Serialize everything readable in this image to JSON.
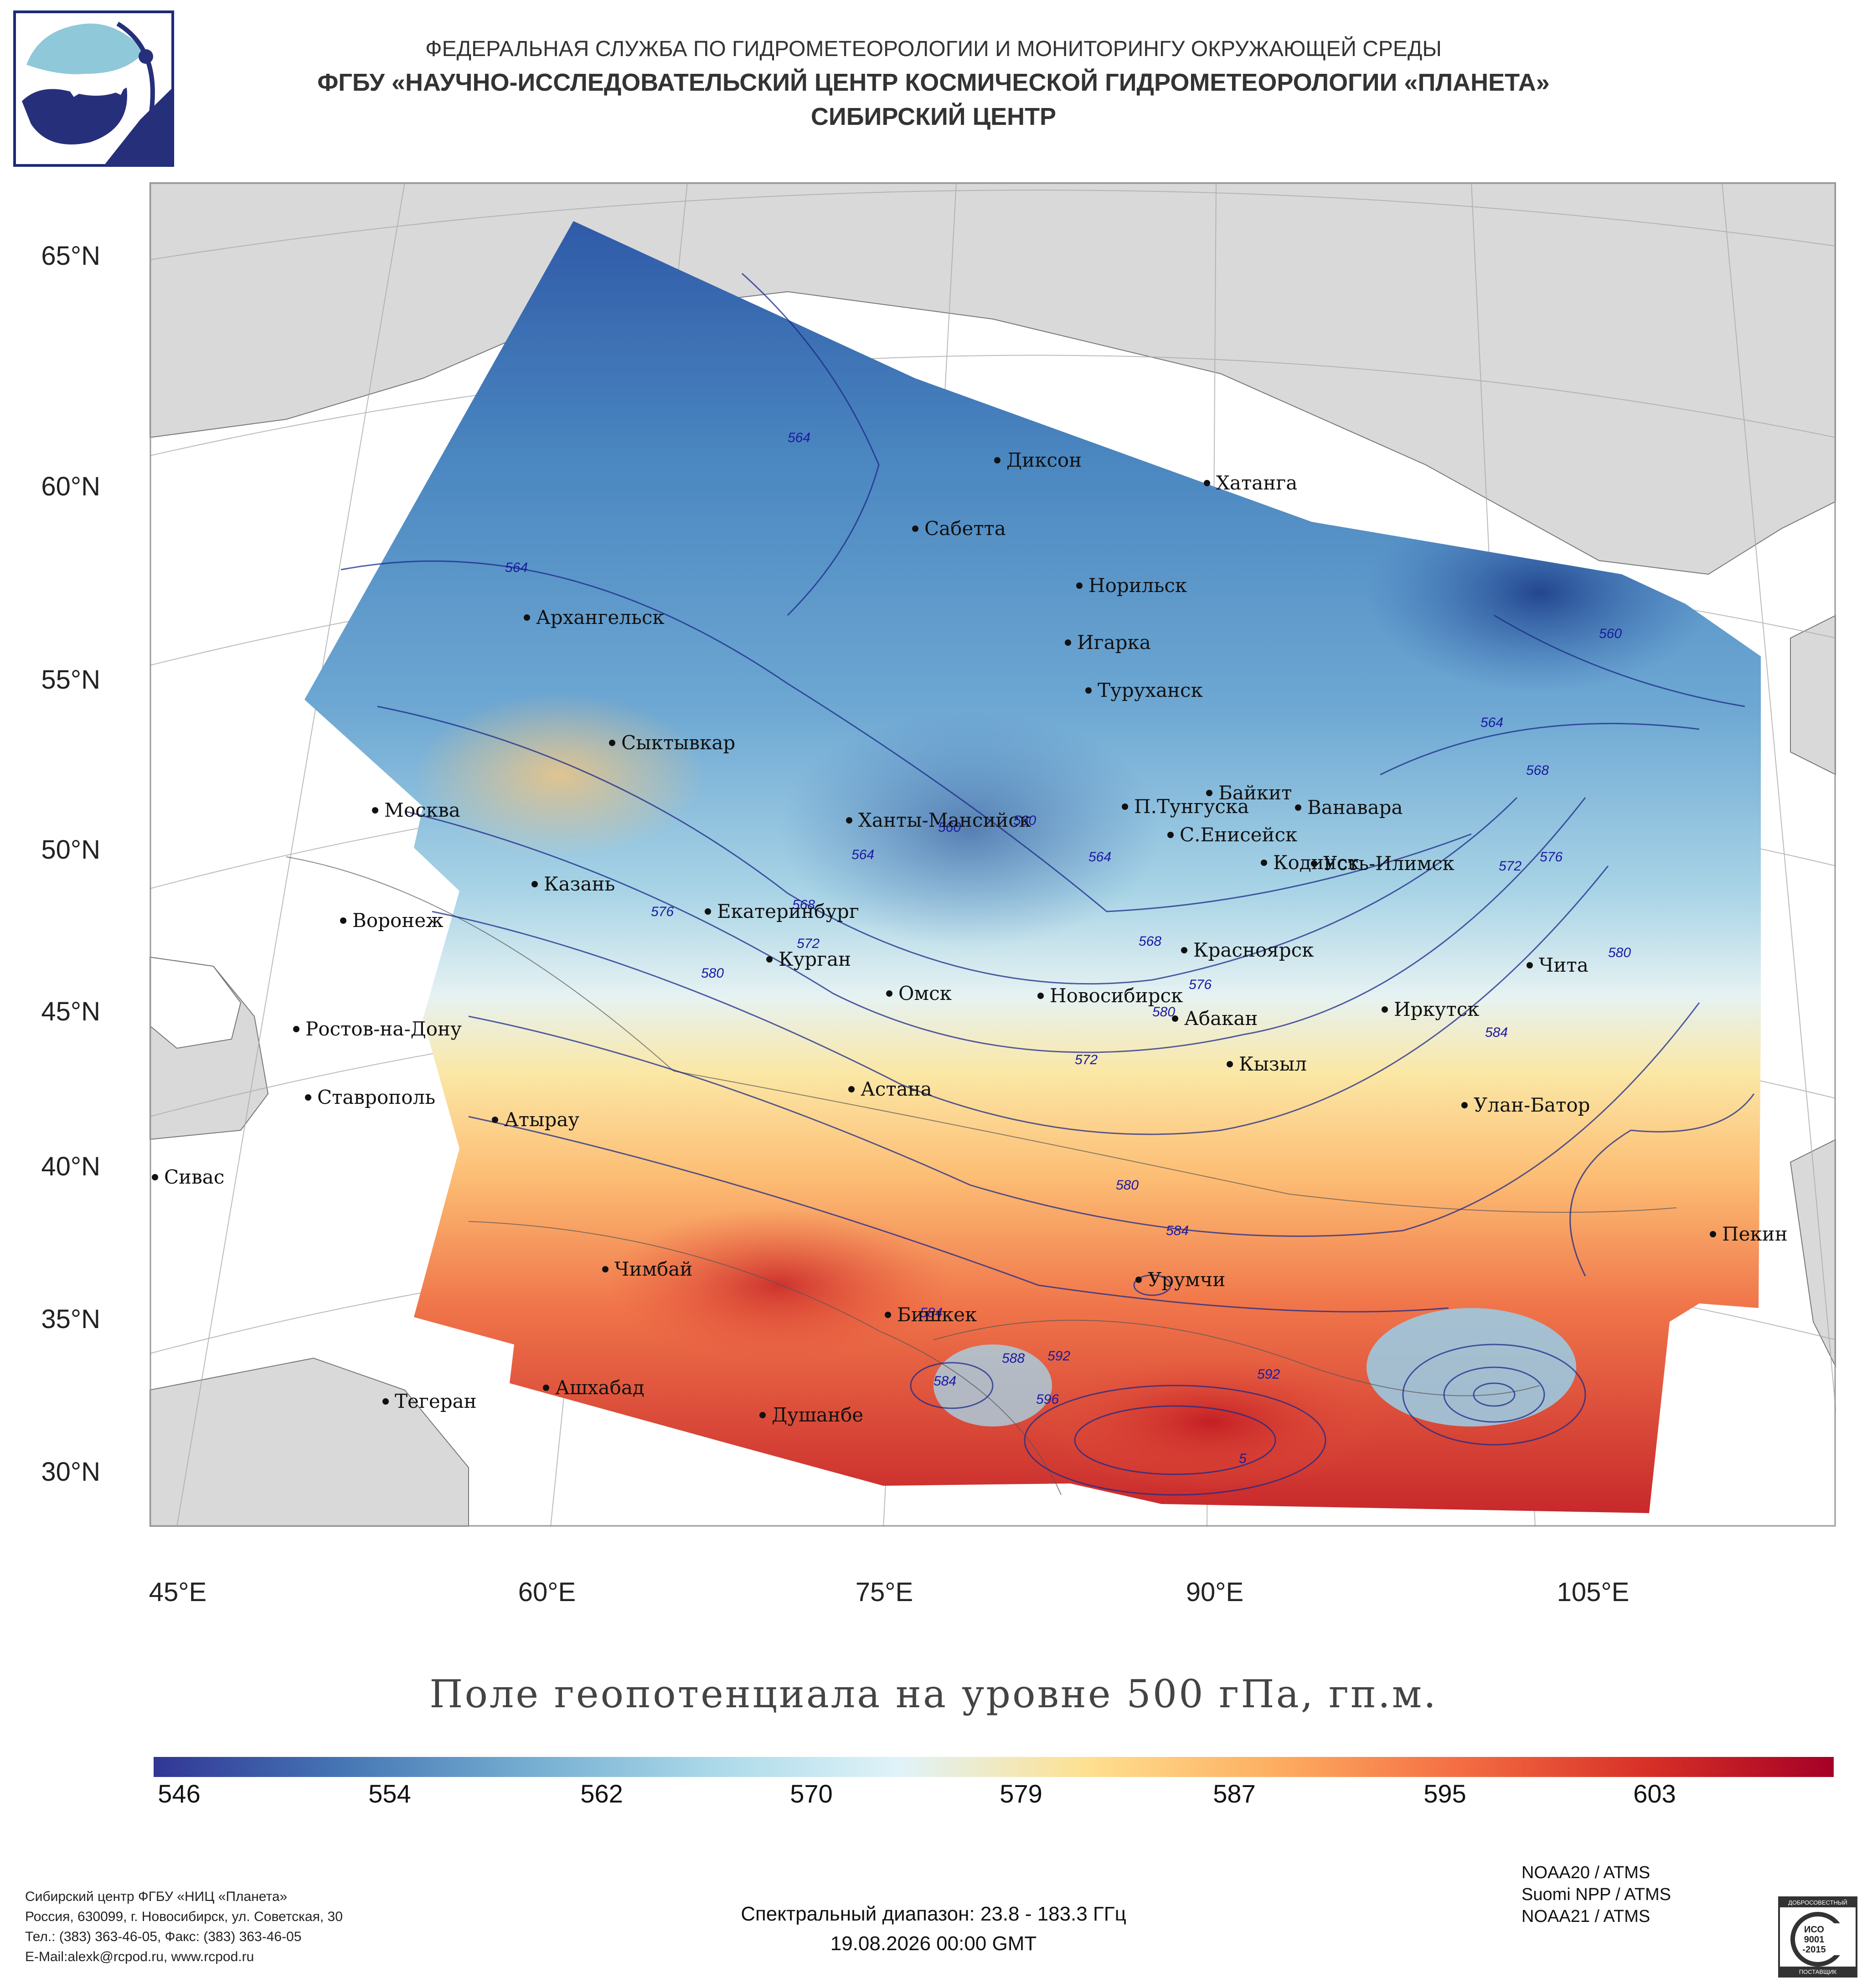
{
  "header": {
    "line1": "ФЕДЕРАЛЬНАЯ СЛУЖБА ПО ГИДРОМЕТЕОРОЛОГИИ И МОНИТОРИНГУ ОКРУЖАЮЩЕЙ СРЕДЫ",
    "line2": "ФГБУ «НАУЧНО-ИССЛЕДОВАТЕЛЬСКИЙ ЦЕНТР КОСМИЧЕСКОЙ ГИДРОМЕТЕОРОЛОГИИ «ПЛАНЕТА»",
    "line3": "СИБИРСКИЙ ЦЕНТР"
  },
  "logo": {
    "icon": "planeta-logo-icon"
  },
  "map": {
    "lat_labels": [
      "65°N",
      "60°N",
      "55°N",
      "50°N",
      "45°N",
      "40°N",
      "35°N",
      "30°N"
    ],
    "lon_labels": [
      "45°E",
      "60°E",
      "75°E",
      "90°E",
      "105°E"
    ],
    "cities": [
      "Диксон",
      "Хатанга",
      "Сабетта",
      "Норильск",
      "Архангельск",
      "Игарка",
      "Туруханск",
      "Сыктывкар",
      "Байкит",
      "П.Тунгуска",
      "Ванавара",
      "Москва",
      "Ханты-Мансийск",
      "С.Енисейск",
      "Кодинск",
      "Усть-Илимск",
      "Казань",
      "Екатеринбург",
      "Воронеж",
      "Красноярск",
      "Курган",
      "Чита",
      "Омск",
      "Новосибирск",
      "Ростов-на-Дону",
      "Иркутск",
      "Абакан",
      "Кызыл",
      "Астана",
      "Ставрополь",
      "Улан-Батор",
      "Атырау",
      "Сивас",
      "Пекин",
      "Чимбай",
      "Урумчи",
      "Бишкек",
      "Ашхабад",
      "Тегеран",
      "Душанбе"
    ],
    "contour_labels": [
      "564",
      "564",
      "560",
      "564",
      "568",
      "572",
      "576",
      "580",
      "560",
      "564",
      "560",
      "564",
      "568",
      "576",
      "572",
      "580",
      "584",
      "580",
      "588",
      "592",
      "596",
      "584",
      "592",
      "568",
      "572",
      "576",
      "580",
      "584",
      "5",
      "584"
    ]
  },
  "title": "Поле геопотенциала на уровне 500 гПа, гп.м.",
  "colorbar": {
    "ticks": [
      "546",
      "554",
      "562",
      "570",
      "579",
      "587",
      "595",
      "603"
    ],
    "colors": [
      "#313695",
      "#4575b4",
      "#74add1",
      "#abd9e9",
      "#e0f3f8",
      "#fee090",
      "#fdae61",
      "#f46d43",
      "#d73027",
      "#a50026"
    ]
  },
  "footer": {
    "contact": [
      "Сибирский центр ФГБУ «НИЦ «Планета»",
      "Россия, 630099, г. Новосибирск, ул. Советская, 30",
      "Тел.: (383) 363-46-05, Факс: (383) 363-46-05",
      "E-Mail:alexk@rcpod.ru, www.rcpod.ru"
    ],
    "sensors": [
      "NOAA20 / ATMS",
      "Suomi NPP / ATMS",
      "NOAA21 / ATMS"
    ],
    "spectral": "Спектральный диапазон: 23.8 - 183.3 ГГц",
    "datetime": "19.08.2026 00:00 GMT",
    "iso": {
      "top": "ДОБРОСОВЕСТНЫЙ",
      "mid1": "ИСО",
      "mid2": "9001",
      "mid3": "-2015",
      "bottom": "ПОСТАВЩИК"
    }
  }
}
